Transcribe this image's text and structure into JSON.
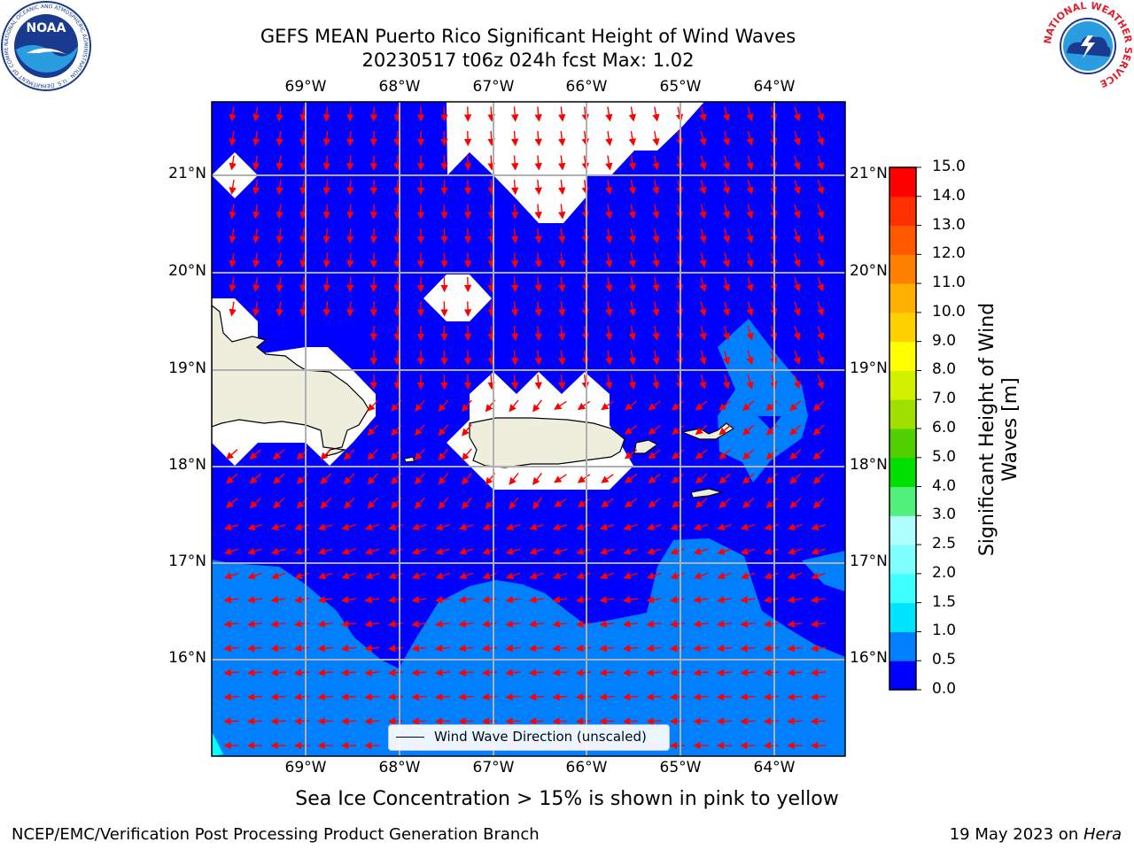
{
  "title": {
    "line1": "GEFS MEAN Puerto Rico Significant Height of Wind Waves",
    "line2": "20230517 t06z 024h fcst   Max: 1.02"
  },
  "logos": {
    "noaa": {
      "text": "NOAA",
      "ring_text": "NATIONAL OCEANIC AND ATMOSPHERIC ADMINISTRATION · U.S. DEPARTMENT OF COMMERCE"
    },
    "nws": {
      "ring_text": "NATIONAL WEATHER SERVICE"
    }
  },
  "map": {
    "lon_labels": [
      "69°W",
      "68°W",
      "67°W",
      "66°W",
      "65°W",
      "64°W"
    ],
    "lat_labels": [
      "21°N",
      "20°N",
      "19°N",
      "18°N",
      "17°N",
      "16°N"
    ],
    "lon_range": [
      -70.0,
      -63.25
    ],
    "lat_range": [
      15.0,
      21.75
    ],
    "colors": {
      "ocean_0_0_5": "#0000ff",
      "ocean_0_5_1_0": "#0080ff",
      "ocean_1_0_1_5": "#00ffff",
      "land": "#eeeedd",
      "arrows": "#ff0000",
      "grid": "#b0b0b0"
    }
  },
  "legend": {
    "label": "Wind Wave Direction (unscaled)"
  },
  "colorbar": {
    "title": "Significant Height of Wind Waves [m]",
    "title_lines": [
      "Significant Height of Wind",
      "Waves [m]"
    ],
    "ticks": [
      "0.0",
      "0.5",
      "1.0",
      "1.5",
      "2.0",
      "2.5",
      "3.0",
      "4.0",
      "5.0",
      "6.0",
      "7.0",
      "8.0",
      "9.0",
      "10.0",
      "11.0",
      "12.0",
      "13.0",
      "14.0",
      "15.0"
    ],
    "colors": [
      "#0000ff",
      "#0080ff",
      "#00e5ff",
      "#40ffff",
      "#7fffff",
      "#b0ffff",
      "#50f07a",
      "#00e000",
      "#50d000",
      "#a0e000",
      "#d0f000",
      "#ffff00",
      "#ffd000",
      "#ffb000",
      "#ff8000",
      "#ff5a00",
      "#ff3000",
      "#ff0000"
    ]
  },
  "sea_ice_note": "Sea Ice Concentration > 15% is shown in pink to yellow",
  "footer": {
    "left": "NCEP/EMC/Verification Post Processing Product Generation Branch",
    "right_prefix": "19 May 2023 on ",
    "right_host": "Hera"
  }
}
